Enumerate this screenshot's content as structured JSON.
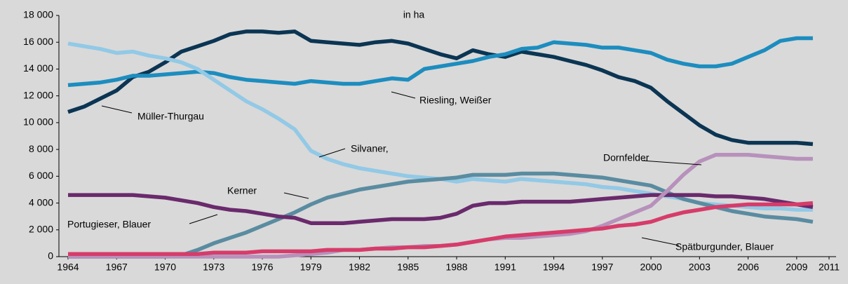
{
  "chart_data": {
    "type": "line",
    "title": "in ha",
    "x": [
      1964,
      1965,
      1966,
      1967,
      1968,
      1969,
      1970,
      1971,
      1972,
      1973,
      1974,
      1975,
      1976,
      1977,
      1978,
      1979,
      1980,
      1981,
      1982,
      1983,
      1984,
      1985,
      1986,
      1987,
      1988,
      1989,
      1990,
      1991,
      1992,
      1993,
      1994,
      1995,
      1996,
      1997,
      1998,
      1999,
      2000,
      2001,
      2002,
      2003,
      2004,
      2005,
      2006,
      2007,
      2008,
      2009,
      2010
    ],
    "xlim": [
      1964,
      2011
    ],
    "xticks": [
      1964,
      1967,
      1970,
      1973,
      1976,
      1979,
      1982,
      1985,
      1988,
      1991,
      1994,
      1997,
      2000,
      2003,
      2006,
      2009,
      2011
    ],
    "ylim": [
      0,
      18000
    ],
    "yticks": [
      0,
      {
        "value": 2000,
        "label": "2 000"
      },
      {
        "value": 4000,
        "label": "4 000"
      },
      {
        "value": 6000,
        "label": "6 000"
      },
      {
        "value": 8000,
        "label": "8 000"
      },
      {
        "value": 10000,
        "label": "10 000"
      },
      {
        "value": 12000,
        "label": "12 000"
      },
      {
        "value": 14000,
        "label": "14 000"
      },
      {
        "value": 16000,
        "label": "16 000"
      },
      {
        "value": 18000,
        "label": "18 000"
      }
    ],
    "grid": false,
    "series": [
      {
        "name": "Müller-Thurgau",
        "color": "#0b3553",
        "values": [
          10800,
          11200,
          11800,
          12400,
          13400,
          13800,
          14500,
          15300,
          15700,
          16100,
          16600,
          16800,
          16800,
          16700,
          16800,
          16100,
          16000,
          15900,
          15800,
          16000,
          16100,
          15900,
          15500,
          15100,
          14800,
          15400,
          15100,
          14900,
          15300,
          15100,
          14900,
          14600,
          14300,
          13900,
          13400,
          13100,
          12600,
          11600,
          10700,
          9800,
          9100,
          8700,
          8500,
          8500,
          8500,
          8500,
          8400
        ]
      },
      {
        "name": "Riesling, Weißer",
        "color": "#1d8dbf",
        "values": [
          12800,
          12900,
          13000,
          13200,
          13500,
          13500,
          13600,
          13700,
          13800,
          13700,
          13400,
          13200,
          13100,
          13000,
          12900,
          13100,
          13000,
          12900,
          12900,
          13100,
          13300,
          13200,
          14000,
          14200,
          14400,
          14600,
          14900,
          15100,
          15500,
          15600,
          16000,
          15900,
          15800,
          15600,
          15600,
          15400,
          15200,
          14700,
          14400,
          14200,
          14200,
          14400,
          14900,
          15400,
          16100,
          16300,
          16300
        ]
      },
      {
        "name": "Silvaner,",
        "color": "#92c9e6",
        "values": [
          15900,
          15700,
          15500,
          15200,
          15300,
          15000,
          14800,
          14500,
          14000,
          13200,
          12400,
          11600,
          11000,
          10300,
          9500,
          7900,
          7300,
          6900,
          6600,
          6400,
          6200,
          6000,
          5900,
          5800,
          5600,
          5800,
          5700,
          5600,
          5800,
          5700,
          5600,
          5500,
          5400,
          5200,
          5100,
          4900,
          4700,
          4500,
          4300,
          4000,
          3900,
          3800,
          3700,
          3600,
          3600,
          3500,
          3500
        ]
      },
      {
        "name": "Kerner",
        "color": "#5a8ca1",
        "values": [
          0,
          0,
          0,
          0,
          0,
          0,
          0,
          100,
          500,
          1000,
          1400,
          1800,
          2300,
          2800,
          3300,
          3900,
          4400,
          4700,
          5000,
          5200,
          5400,
          5600,
          5700,
          5800,
          5900,
          6100,
          6100,
          6100,
          6200,
          6200,
          6200,
          6100,
          6000,
          5900,
          5700,
          5500,
          5300,
          4800,
          4300,
          4000,
          3700,
          3400,
          3200,
          3000,
          2900,
          2800,
          2600
        ]
      },
      {
        "name": "Portugieser, Blauer",
        "color": "#6a2a6c",
        "values": [
          4600,
          4600,
          4600,
          4600,
          4600,
          4500,
          4400,
          4200,
          4000,
          3700,
          3500,
          3400,
          3200,
          3000,
          2900,
          2500,
          2500,
          2500,
          2600,
          2700,
          2800,
          2800,
          2800,
          2900,
          3200,
          3800,
          4000,
          4000,
          4100,
          4100,
          4100,
          4100,
          4200,
          4300,
          4400,
          4500,
          4600,
          4600,
          4600,
          4600,
          4500,
          4500,
          4400,
          4300,
          4100,
          3900,
          3700
        ]
      },
      {
        "name": "Dornfelder",
        "color": "#b791bb",
        "values": [
          0,
          0,
          0,
          0,
          0,
          0,
          0,
          0,
          0,
          0,
          0,
          0,
          0,
          0,
          100,
          200,
          300,
          500,
          500,
          600,
          700,
          700,
          800,
          800,
          900,
          1100,
          1300,
          1400,
          1400,
          1500,
          1600,
          1700,
          1900,
          2300,
          2800,
          3300,
          3800,
          4900,
          6100,
          7100,
          7600,
          7600,
          7600,
          7500,
          7400,
          7300,
          7300
        ]
      },
      {
        "name": "Spätburgunder, Blauer",
        "color": "#d63c6a",
        "values": [
          200,
          200,
          200,
          200,
          200,
          200,
          200,
          200,
          200,
          300,
          300,
          300,
          400,
          400,
          400,
          400,
          500,
          500,
          500,
          600,
          600,
          700,
          700,
          800,
          900,
          1100,
          1300,
          1500,
          1600,
          1700,
          1800,
          1900,
          2000,
          2100,
          2300,
          2400,
          2600,
          3000,
          3300,
          3500,
          3700,
          3800,
          3900,
          3900,
          3900,
          3900,
          4000
        ]
      }
    ]
  }
}
